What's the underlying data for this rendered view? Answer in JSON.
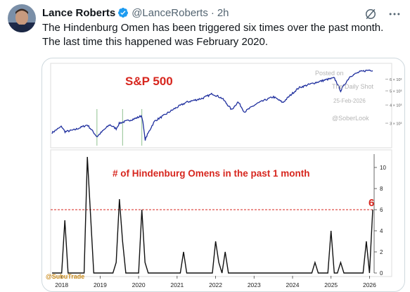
{
  "tweet": {
    "display_name": "Lance Roberts",
    "handle": "@LanceRoberts",
    "separator": "·",
    "time": "2h",
    "text_line1": "The Hindenburg Omen has been triggered six times over the past month.",
    "text_line2": "The last time this happened was February 2020."
  },
  "icons": {
    "verified": "verified-badge-icon",
    "grok": "grok-icon",
    "more": "more-options-icon"
  },
  "colors": {
    "verified": "#1d9bf0",
    "spx_line": "#1f2f9e",
    "title_red": "#d7261e",
    "omen_line": "#111111",
    "threshold": "#d7261e"
  },
  "chart": {
    "watermark_line1": "Posted on",
    "watermark_line2": "The Daily Shot",
    "watermark_date": "25-Feb-2026",
    "watermark_handle": "@SoberLook",
    "source": "@SubuTrade"
  },
  "chart_data": [
    {
      "type": "line",
      "title": "S&P 500",
      "x_range": [
        "2017-10",
        "2026-02"
      ],
      "log_scale": true,
      "y_ticks": [
        "3 × 10³",
        "4 × 10³",
        "5 × 10³",
        "6 × 10³"
      ],
      "y_tick_values": [
        3000,
        4000,
        5000,
        6000
      ],
      "ylim": [
        2200,
        7300
      ],
      "series": [
        {
          "points": [
            [
              "2017-10",
              2580
            ],
            [
              "2018-01",
              2850
            ],
            [
              "2018-02",
              2620
            ],
            [
              "2018-05",
              2700
            ],
            [
              "2018-09",
              2920
            ],
            [
              "2018-12",
              2420
            ],
            [
              "2019-04",
              2930
            ],
            [
              "2019-06",
              2750
            ],
            [
              "2019-07",
              3000
            ],
            [
              "2019-12",
              3230
            ],
            [
              "2020-02",
              3380
            ],
            [
              "2020-03",
              2300
            ],
            [
              "2020-06",
              3100
            ],
            [
              "2020-09",
              3400
            ],
            [
              "2020-12",
              3750
            ],
            [
              "2021-04",
              4180
            ],
            [
              "2021-09",
              4450
            ],
            [
              "2021-12",
              4770
            ],
            [
              "2022-03",
              4450
            ],
            [
              "2022-06",
              3700
            ],
            [
              "2022-08",
              4200
            ],
            [
              "2022-10",
              3580
            ],
            [
              "2023-02",
              4100
            ],
            [
              "2023-07",
              4550
            ],
            [
              "2023-10",
              4150
            ],
            [
              "2024-03",
              5250
            ],
            [
              "2024-07",
              5600
            ],
            [
              "2024-12",
              6000
            ],
            [
              "2025-02",
              6120
            ],
            [
              "2025-04",
              5000
            ],
            [
              "2025-07",
              6300
            ],
            [
              "2025-10",
              6750
            ],
            [
              "2026-01",
              6950
            ],
            [
              "2026-02",
              6900
            ]
          ]
        }
      ],
      "event_markers_x": [
        "2018-12",
        "2019-08",
        "2020-02"
      ]
    },
    {
      "type": "line",
      "title": "# of Hindenburg Omens in the past 1 month",
      "x_ticks": [
        "2018",
        "2019",
        "2020",
        "2021",
        "2022",
        "2023",
        "2024",
        "2025",
        "2026"
      ],
      "y_ticks": [
        "0",
        "2",
        "4",
        "6",
        "8",
        "10"
      ],
      "ylim": [
        0,
        11
      ],
      "threshold": 6,
      "current_label": "6",
      "series": [
        {
          "points": [
            [
              "2017-10",
              0
            ],
            [
              "2018-01",
              0
            ],
            [
              "2018-02",
              5
            ],
            [
              "2018-03",
              0
            ],
            [
              "2018-08",
              0
            ],
            [
              "2018-09",
              11
            ],
            [
              "2018-11",
              0
            ],
            [
              "2019-05",
              0
            ],
            [
              "2019-06",
              1
            ],
            [
              "2019-07",
              7
            ],
            [
              "2019-08",
              3
            ],
            [
              "2019-09",
              0
            ],
            [
              "2020-01",
              0
            ],
            [
              "2020-02",
              6
            ],
            [
              "2020-03",
              1
            ],
            [
              "2020-04",
              0
            ],
            [
              "2021-02",
              0
            ],
            [
              "2021-03",
              2
            ],
            [
              "2021-04",
              0
            ],
            [
              "2021-12",
              0
            ],
            [
              "2022-01",
              3
            ],
            [
              "2022-02",
              1
            ],
            [
              "2022-03",
              0
            ],
            [
              "2022-04",
              2
            ],
            [
              "2022-05",
              0
            ],
            [
              "2024-07",
              0
            ],
            [
              "2024-08",
              1
            ],
            [
              "2024-09",
              0
            ],
            [
              "2024-12",
              0
            ],
            [
              "2025-01",
              4
            ],
            [
              "2025-02",
              0
            ],
            [
              "2025-03",
              0
            ],
            [
              "2025-04",
              1
            ],
            [
              "2025-05",
              0
            ],
            [
              "2025-11",
              0
            ],
            [
              "2025-12",
              3
            ],
            [
              "2026-01",
              0
            ],
            [
              "2026-02",
              6
            ]
          ]
        }
      ]
    }
  ]
}
